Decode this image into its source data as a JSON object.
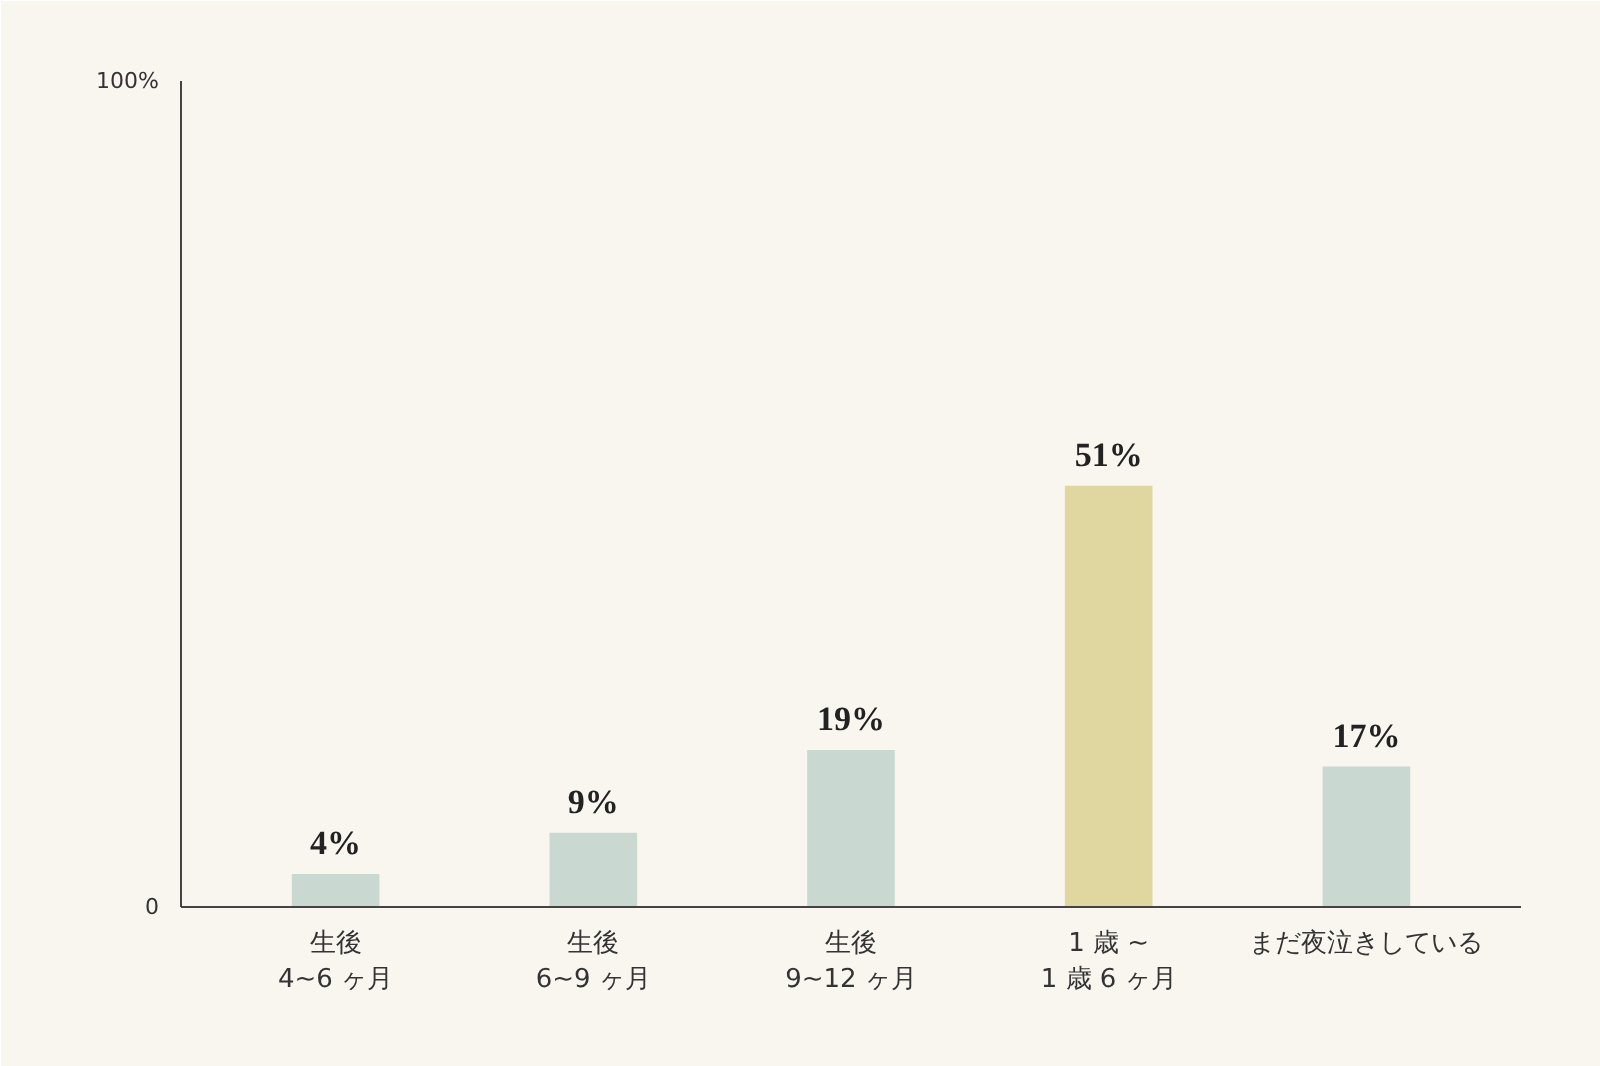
{
  "chart_data": {
    "type": "bar",
    "categories": [
      "生後\n4~6 ヶ月",
      "生後\n6~9 ヶ月",
      "生後\n9~12 ヶ月",
      "1 歳 ~\n1 歳 6 ヶ月",
      "まだ夜泣きしている"
    ],
    "values": [
      4,
      9,
      19,
      51,
      17
    ],
    "colors": [
      "#c9d9d1",
      "#c9d9d1",
      "#c9d9d1",
      "#e0d7a0",
      "#c9d9d1"
    ],
    "value_labels": [
      "4%",
      "9%",
      "19%",
      "51%",
      "17%"
    ],
    "ylim": [
      0,
      100
    ],
    "yticks": [
      0,
      {
        "value": 100,
        "label": "100%"
      }
    ],
    "grid": false
  }
}
